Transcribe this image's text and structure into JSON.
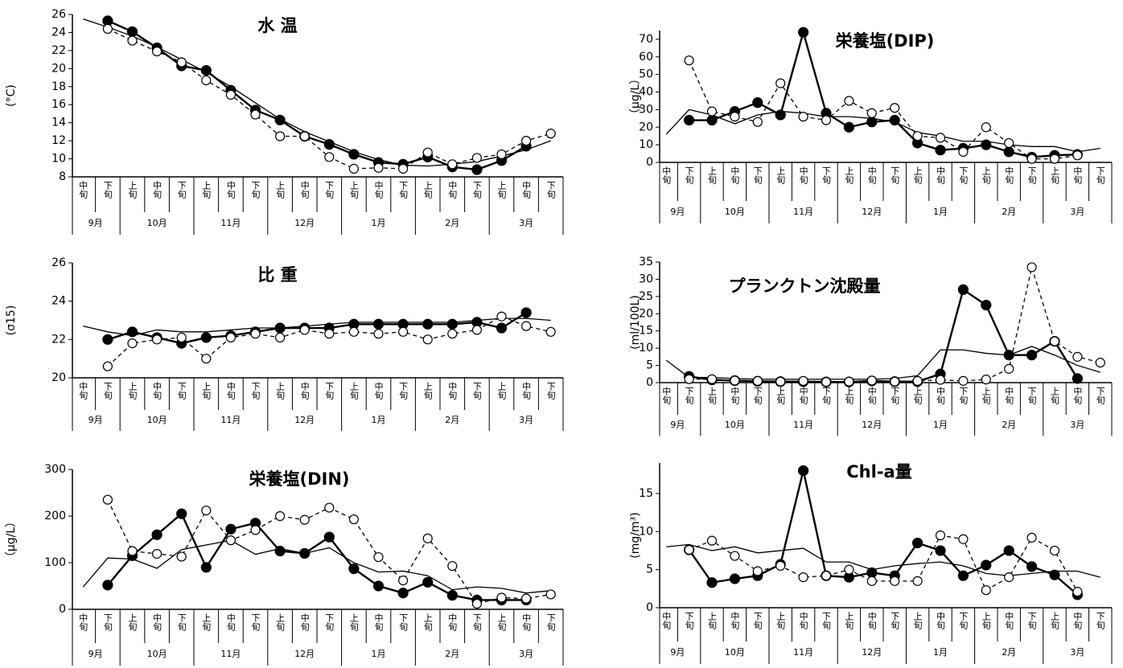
{
  "chart_data": [
    {
      "type": "line",
      "title": "水 温",
      "y_label": "(°C)",
      "categories": [
        "中旬",
        "下旬",
        "上旬",
        "中旬",
        "下旬",
        "上旬",
        "中旬",
        "下旬",
        "上旬",
        "中旬",
        "下旬",
        "上旬",
        "中旬",
        "下旬",
        "上旬",
        "中旬",
        "下旬",
        "上旬",
        "中旬",
        "下旬"
      ],
      "months": [
        "9月",
        "10月",
        "11月",
        "12月",
        "1月",
        "2月",
        "3月"
      ],
      "ylim": [
        8,
        26
      ],
      "yticks": [
        8,
        10,
        12,
        14,
        16,
        18,
        20,
        22,
        24,
        26
      ],
      "series": [
        {
          "color": "#000000",
          "marker": "none",
          "dash": false,
          "values": [
            25.5,
            24.6,
            23.6,
            22.4,
            21.0,
            19.6,
            18.0,
            16.2,
            14.4,
            13.0,
            11.9,
            10.8,
            9.9,
            9.3,
            9.2,
            9.4,
            9.7,
            10.3,
            11.0,
            12.0
          ]
        },
        {
          "color": "#000000",
          "marker": "filled",
          "dash": false,
          "values": [
            null,
            25.3,
            24.1,
            22.3,
            20.3,
            19.8,
            17.6,
            15.4,
            14.3,
            12.5,
            11.6,
            10.5,
            9.6,
            9.4,
            10.2,
            9.1,
            8.8,
            9.8,
            11.4,
            null
          ]
        },
        {
          "color": "#000000",
          "marker": "open",
          "dash": true,
          "values": [
            null,
            24.4,
            23.1,
            21.9,
            20.7,
            18.7,
            17.1,
            14.9,
            12.5,
            12.5,
            10.2,
            8.9,
            9.0,
            8.9,
            10.7,
            9.4,
            10.1,
            10.5,
            12.0,
            12.8
          ]
        }
      ]
    },
    {
      "type": "line",
      "title": "栄養塩(DIP)",
      "y_label": "（μg/L）",
      "categories": [
        "中旬",
        "下旬",
        "上旬",
        "中旬",
        "下旬",
        "上旬",
        "中旬",
        "下旬",
        "上旬",
        "中旬",
        "下旬",
        "上旬",
        "中旬",
        "下旬",
        "上旬",
        "中旬",
        "下旬",
        "上旬",
        "中旬",
        "下旬"
      ],
      "months": [
        "9月",
        "10月",
        "11月",
        "12月",
        "1月",
        "2月",
        "3月"
      ],
      "ylim": [
        0,
        75
      ],
      "yticks": [
        0,
        10,
        20,
        30,
        40,
        50,
        60,
        70
      ],
      "series": [
        {
          "color": "#000000",
          "marker": "none",
          "dash": false,
          "values": [
            16,
            30,
            27,
            22,
            27,
            29,
            28,
            26,
            26,
            25,
            23,
            17,
            15,
            12,
            12,
            10,
            9,
            9,
            6,
            8
          ]
        },
        {
          "color": "#000000",
          "marker": "filled",
          "dash": false,
          "values": [
            null,
            24,
            24,
            29,
            34,
            27,
            74,
            28,
            20,
            23,
            24,
            11,
            7,
            8,
            10,
            6,
            3,
            4,
            4.5,
            null
          ]
        },
        {
          "color": "#000000",
          "marker": "open",
          "dash": true,
          "values": [
            null,
            58,
            29,
            26,
            23,
            45,
            26,
            24,
            35,
            28,
            31,
            15,
            14,
            6,
            20,
            11,
            2,
            2,
            4,
            null
          ]
        }
      ]
    },
    {
      "type": "line",
      "title": "比 重",
      "y_label": "(σ15)",
      "categories": [
        "中旬",
        "下旬",
        "上旬",
        "中旬",
        "下旬",
        "上旬",
        "中旬",
        "下旬",
        "上旬",
        "中旬",
        "下旬",
        "上旬",
        "中旬",
        "下旬",
        "上旬",
        "中旬",
        "下旬",
        "上旬",
        "中旬",
        "下旬"
      ],
      "months": [
        "9月",
        "10月",
        "11月",
        "12月",
        "1月",
        "2月",
        "3月"
      ],
      "ylim": [
        20,
        26
      ],
      "yticks": [
        20,
        22,
        24,
        26
      ],
      "series": [
        {
          "color": "#000000",
          "marker": "none",
          "dash": false,
          "values": [
            22.7,
            22.4,
            22.2,
            22.5,
            22.4,
            22.4,
            22.5,
            22.6,
            22.6,
            22.7,
            22.8,
            22.9,
            22.9,
            22.9,
            22.9,
            22.9,
            23.0,
            23.1,
            23.1,
            23.0
          ]
        },
        {
          "color": "#000000",
          "marker": "filled",
          "dash": false,
          "values": [
            null,
            22.0,
            22.4,
            22.1,
            21.8,
            22.1,
            22.2,
            22.4,
            22.6,
            22.6,
            22.6,
            22.8,
            22.8,
            22.8,
            22.8,
            22.8,
            22.9,
            22.6,
            23.4,
            null
          ]
        },
        {
          "color": "#000000",
          "marker": "open",
          "dash": true,
          "values": [
            null,
            20.6,
            21.8,
            22.0,
            22.1,
            21.0,
            22.1,
            22.3,
            22.1,
            22.5,
            22.3,
            22.4,
            22.3,
            22.4,
            22.0,
            22.3,
            22.5,
            23.2,
            22.7,
            22.4
          ]
        }
      ]
    },
    {
      "type": "line",
      "title": "プランクトン沈殿量",
      "y_label": "(ml/100L)",
      "categories": [
        "中旬",
        "下旬",
        "上旬",
        "中旬",
        "下旬",
        "上旬",
        "中旬",
        "下旬",
        "上旬",
        "中旬",
        "下旬",
        "上旬",
        "中旬",
        "下旬",
        "上旬",
        "中旬",
        "下旬",
        "上旬",
        "中旬",
        "下旬"
      ],
      "months": [
        "9月",
        "10月",
        "11月",
        "12月",
        "1月",
        "2月",
        "3月"
      ],
      "ylim": [
        0,
        35
      ],
      "yticks": [
        0,
        5,
        10,
        15,
        20,
        25,
        30,
        35
      ],
      "series": [
        {
          "color": "#000000",
          "marker": "none",
          "dash": false,
          "values": [
            6.5,
            1.5,
            1.5,
            1.2,
            1,
            1,
            1,
            1,
            1,
            1,
            1.2,
            2,
            9.5,
            9.5,
            8.5,
            8,
            10.5,
            8,
            5,
            3
          ]
        },
        {
          "color": "#000000",
          "marker": "filled",
          "dash": false,
          "values": [
            null,
            1.8,
            0.8,
            0.6,
            0.4,
            0.3,
            0.3,
            0.2,
            0.2,
            0.5,
            0.3,
            0.3,
            2.5,
            27,
            22.5,
            8,
            8,
            12,
            1.2,
            null
          ]
        },
        {
          "color": "#000000",
          "marker": "open",
          "dash": true,
          "values": [
            null,
            1.0,
            1.0,
            0.6,
            0.5,
            0.3,
            0.5,
            0.2,
            0.3,
            0.6,
            0.3,
            0.5,
            0.8,
            0.5,
            0.9,
            4,
            33.5,
            12,
            7.5,
            5.8
          ]
        }
      ]
    },
    {
      "type": "line",
      "title": "栄養塩(DIN)",
      "y_label": "（μg/L）",
      "categories": [
        "中旬",
        "下旬",
        "上旬",
        "中旬",
        "下旬",
        "上旬",
        "中旬",
        "下旬",
        "上旬",
        "中旬",
        "下旬",
        "上旬",
        "中旬",
        "下旬",
        "上旬",
        "中旬",
        "下旬",
        "上旬",
        "中旬",
        "下旬"
      ],
      "months": [
        "9月",
        "10月",
        "11月",
        "12月",
        "1月",
        "2月",
        "3月"
      ],
      "ylim": [
        0,
        300
      ],
      "yticks": [
        0,
        100,
        200,
        300
      ],
      "series": [
        {
          "color": "#000000",
          "marker": "none",
          "dash": false,
          "values": [
            48,
            110,
            108,
            88,
            128,
            138,
            148,
            118,
            130,
            120,
            132,
            100,
            80,
            82,
            72,
            42,
            48,
            45,
            35,
            40
          ]
        },
        {
          "color": "#000000",
          "marker": "filled",
          "dash": false,
          "values": [
            null,
            52,
            115,
            160,
            205,
            90,
            172,
            185,
            125,
            120,
            155,
            87,
            50,
            35,
            58,
            30,
            20,
            20,
            20,
            null
          ]
        },
        {
          "color": "#000000",
          "marker": "open",
          "dash": true,
          "values": [
            null,
            235,
            125,
            119,
            113,
            212,
            148,
            170,
            200,
            192,
            218,
            193,
            112,
            62,
            152,
            93,
            12,
            25,
            23,
            32
          ]
        }
      ]
    },
    {
      "type": "line",
      "title": "Chl-a量",
      "y_label": "(mg/m³)",
      "categories": [
        "中旬",
        "下旬",
        "上旬",
        "中旬",
        "下旬",
        "上旬",
        "中旬",
        "下旬",
        "上旬",
        "中旬",
        "下旬",
        "上旬",
        "中旬",
        "下旬",
        "上旬",
        "中旬",
        "下旬",
        "上旬",
        "中旬",
        "下旬"
      ],
      "months": [
        "9月",
        "10月",
        "11月",
        "12月",
        "1月",
        "2月",
        "3月"
      ],
      "ylim": [
        0,
        19
      ],
      "yticks": [
        0,
        5,
        10,
        15
      ],
      "series": [
        {
          "color": "#000000",
          "marker": "none",
          "dash": false,
          "values": [
            8,
            8.3,
            7.5,
            8,
            7.2,
            7.5,
            7.8,
            6,
            6,
            5,
            5.5,
            5.8,
            6,
            5.5,
            4.5,
            4.2,
            4.5,
            4.8,
            4.8,
            4
          ]
        },
        {
          "color": "#000000",
          "marker": "filled",
          "dash": false,
          "values": [
            null,
            7.6,
            3.3,
            3.8,
            4.2,
            5.7,
            18,
            4.2,
            4.0,
            4.6,
            4.2,
            8.5,
            7.5,
            4.2,
            5.6,
            7.5,
            5.4,
            4.3,
            1.7,
            null
          ]
        },
        {
          "color": "#000000",
          "marker": "open",
          "dash": true,
          "values": [
            null,
            7.6,
            8.8,
            6.8,
            4.8,
            5.5,
            4.0,
            4.2,
            5.0,
            3.5,
            3.5,
            3.5,
            9.5,
            9.0,
            2.3,
            4.0,
            9.2,
            7.5,
            2.1,
            null
          ]
        }
      ]
    }
  ]
}
